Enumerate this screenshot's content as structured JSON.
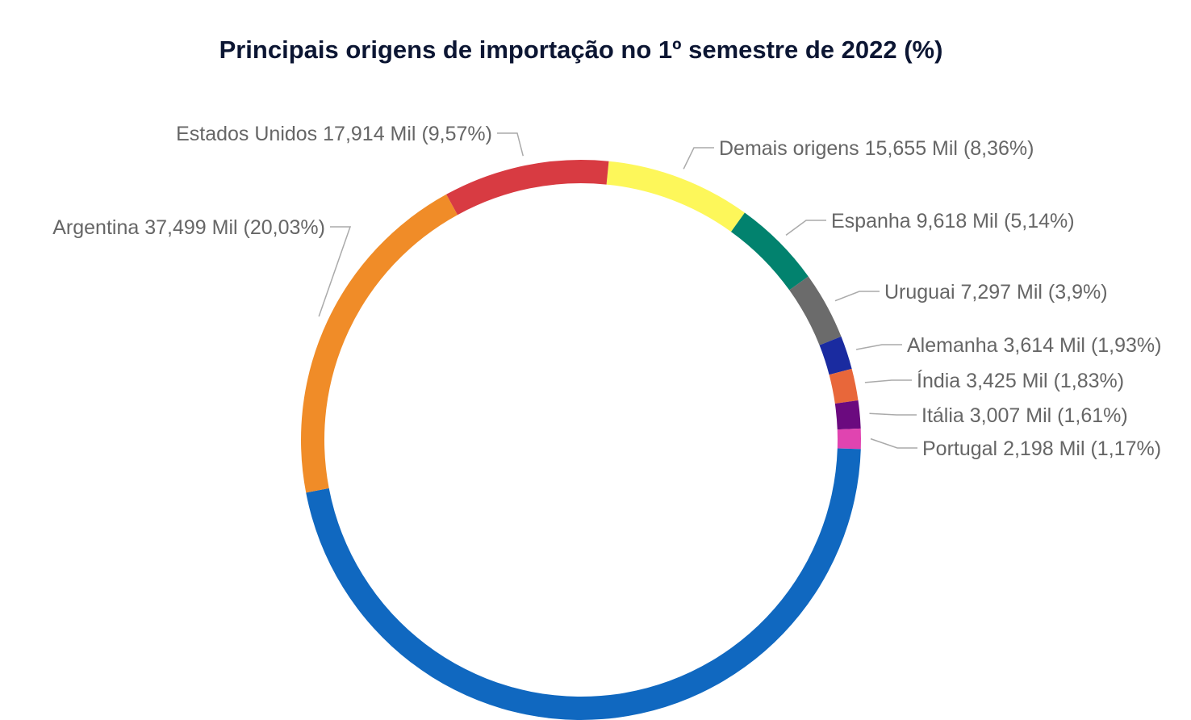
{
  "chart_data": {
    "type": "pie",
    "title": "Principais origens de importação no 1º semestre de 2022 (%)",
    "categories": [
      "Demais origens",
      "Espanha",
      "Uruguai",
      "Alemanha",
      "Índia",
      "Itália",
      "Portugal",
      null,
      "Argentina",
      "Estados Unidos"
    ],
    "values": [
      8.36,
      5.14,
      3.9,
      1.93,
      1.83,
      1.61,
      1.17,
      46.46,
      20.03,
      9.57
    ],
    "value_labels": [
      "(8,36%)",
      "(5,14%)",
      "(3,9%)",
      "(1,93%)",
      "(1,83%)",
      "(1,61%)",
      "(1,17%)",
      null,
      "(20,03%)",
      "(9,57%)"
    ],
    "amounts": [
      15.655,
      9.618,
      7.297,
      3.614,
      3.425,
      3.007,
      2.198,
      null,
      37.499,
      17.914
    ],
    "amount_labels": [
      "15,655 Mil",
      "9,618 Mil",
      "7,297 Mil",
      "3,614 Mil",
      "3,425 Mil",
      "3,007 Mil",
      "2,198 Mil",
      null,
      "37,499 Mil",
      "17,914 Mil"
    ],
    "colors": [
      "#FDF75A",
      "#02826E",
      "#6B6B6B",
      "#1A2BA0",
      "#E8673A",
      "#6B0A7F",
      "#E044B0",
      "#1068C0",
      "#F08C28",
      "#D83B42"
    ],
    "donut": true
  }
}
